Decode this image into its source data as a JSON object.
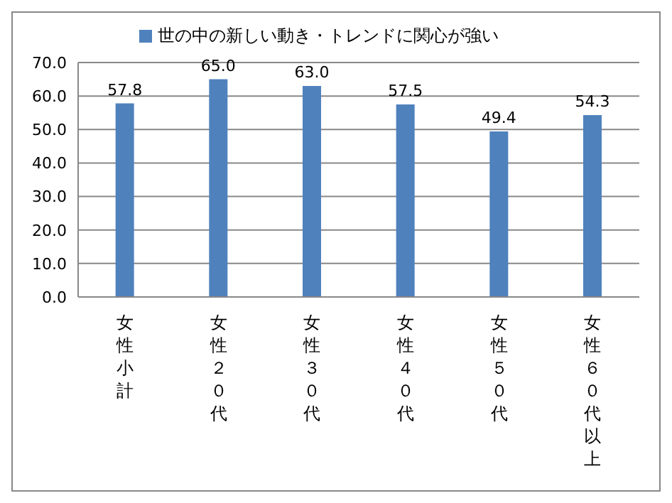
{
  "chart_data": {
    "type": "bar",
    "categories": [
      "女性小計",
      "女性２０代",
      "女性３０代",
      "女性４０代",
      "女性５０代",
      "女性６０代以上"
    ],
    "series": [
      {
        "name": "世の中の新しい動き・トレンドに関心が強い",
        "color": "#4f81bd",
        "values": [
          57.8,
          65.0,
          63.0,
          57.5,
          49.4,
          54.3
        ],
        "value_labels": [
          "57.8",
          "65.0",
          "63.0",
          "57.5",
          "49.4",
          "54.3"
        ]
      }
    ],
    "ylim": [
      0,
      70
    ],
    "yticks": [
      {
        "value": 0,
        "label": "0.0"
      },
      {
        "value": 10,
        "label": "10.0"
      },
      {
        "value": 20,
        "label": "20.0"
      },
      {
        "value": 30,
        "label": "30.0"
      },
      {
        "value": 40,
        "label": "40.0"
      },
      {
        "value": 50,
        "label": "50.0"
      },
      {
        "value": 60,
        "label": "60.0"
      },
      {
        "value": 70,
        "label": "70.0"
      }
    ],
    "grid": "y",
    "legend": "top"
  }
}
